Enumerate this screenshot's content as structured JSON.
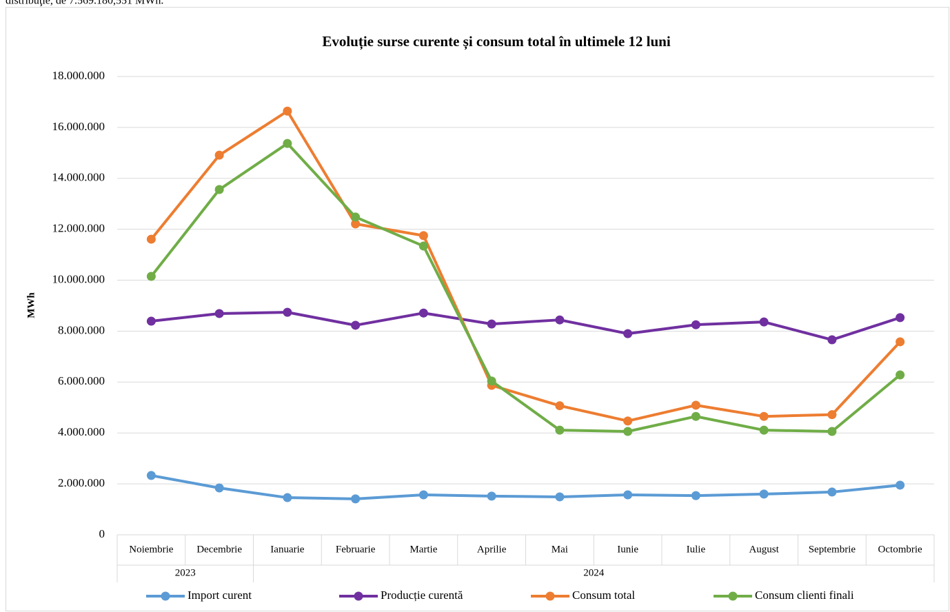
{
  "intro_text": "distribuţie, de 7.569.180,551 MWh.",
  "chart_data": {
    "type": "line",
    "title": "Evoluție surse curente și consum total în ultimele 12 luni",
    "y_label": "MWh",
    "categories": [
      "Noiembrie",
      "Decembrie",
      "Ianuarie",
      "Februarie",
      "Martie",
      "Aprilie",
      "Mai",
      "Iunie",
      "Iulie",
      "August",
      "Septembrie",
      "Octombrie"
    ],
    "year_labels": [
      "2023",
      null,
      "2024",
      null,
      null,
      null,
      null,
      null,
      null,
      null,
      null,
      null
    ],
    "ylim": [
      0,
      18000000
    ],
    "yticks": [
      0,
      {
        "value": 2000000,
        "label": "2.000.000"
      },
      {
        "value": 4000000,
        "label": "4.000.000"
      },
      {
        "value": 6000000,
        "label": "6.000.000"
      },
      {
        "value": 8000000,
        "label": "8.000.000"
      },
      {
        "value": 10000000,
        "label": "10.000.000"
      },
      {
        "value": 12000000,
        "label": "12.000.000"
      },
      {
        "value": 14000000,
        "label": "14.000.000"
      },
      {
        "value": 16000000,
        "label": "16.000.000"
      },
      {
        "value": 18000000,
        "label": "18.000.000"
      }
    ],
    "grid": true,
    "legend": "bottom",
    "series": [
      {
        "name": "Import curent",
        "color": "#5b9bd5",
        "values": [
          2330000,
          1840000,
          1460000,
          1410000,
          1570000,
          1520000,
          1490000,
          1570000,
          1540000,
          1600000,
          1680000,
          1950000
        ]
      },
      {
        "name": "Producție curentă",
        "color": "#7030a0",
        "values": [
          8390000,
          8690000,
          8740000,
          8230000,
          8710000,
          8280000,
          8440000,
          7900000,
          8250000,
          8360000,
          7660000,
          8530000
        ]
      },
      {
        "name": "Consum total",
        "color": "#ed7d31",
        "values": [
          11610000,
          14910000,
          16640000,
          12210000,
          11750000,
          5870000,
          5070000,
          4470000,
          5090000,
          4650000,
          4720000,
          7580000
        ]
      },
      {
        "name": "Consum clienti finali",
        "color": "#70ad47",
        "values": [
          10150000,
          13560000,
          15370000,
          12480000,
          11340000,
          6040000,
          4110000,
          4060000,
          4650000,
          4110000,
          4060000,
          6280000
        ]
      }
    ]
  }
}
